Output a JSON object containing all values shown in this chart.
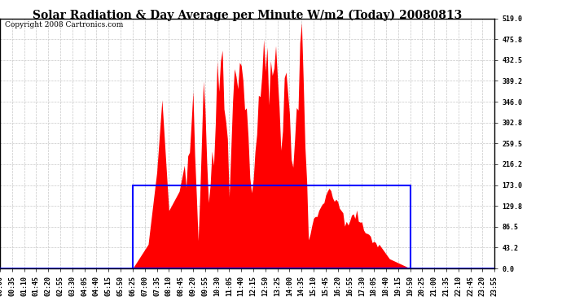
{
  "title": "Solar Radiation & Day Average per Minute W/m2 (Today) 20080813",
  "copyright": "Copyright 2008 Cartronics.com",
  "y_max": 519.0,
  "y_ticks": [
    0.0,
    43.2,
    86.5,
    129.8,
    173.0,
    216.2,
    259.5,
    302.8,
    346.0,
    389.2,
    432.5,
    475.8,
    519.0
  ],
  "day_avg": 173.0,
  "bg_color": "#ffffff",
  "fill_color": "#ff0000",
  "avg_line_color": "#0000ff",
  "grid_color": "#c8c8c8",
  "title_fontsize": 10,
  "copyright_fontsize": 6.5,
  "tick_fontsize": 6
}
